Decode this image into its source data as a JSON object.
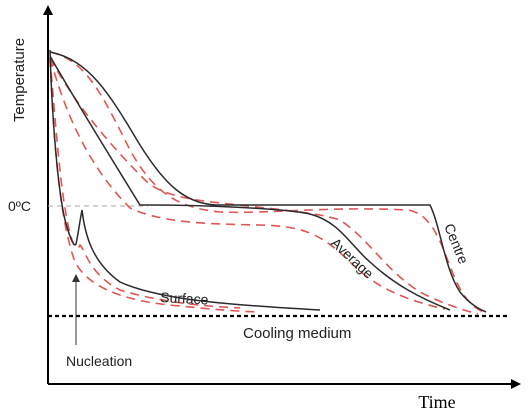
{
  "labels": {
    "y_axis": "Temperature",
    "x_axis": "Time",
    "zero": "0ºC",
    "surface": "Surface",
    "average": "Average",
    "centre": "Centre",
    "cooling_medium": "Cooling medium",
    "nucleation": "Nucleation"
  },
  "colors": {
    "solid_curve": "#2b2b2b",
    "dashed_curve": "#e05555",
    "reference_line": "#aaaaaa",
    "axis": "#000000"
  }
}
